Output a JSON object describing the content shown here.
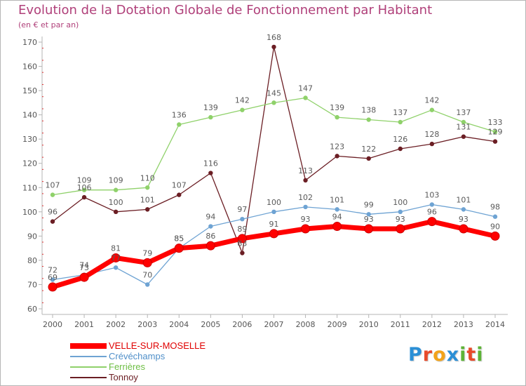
{
  "title": "Evolution de la Dotation Globale de Fonctionnement par Habitant",
  "subtitle": "(en € et par an)",
  "logo": {
    "text": "Proxiti",
    "letters": [
      "P",
      "r",
      "o",
      "x",
      "i",
      "t",
      "i"
    ],
    "colors": [
      "#2b8fd6",
      "#e84a2a",
      "#f2a31a",
      "#2b8fd6",
      "#5db336",
      "#e84a2a",
      "#5db336"
    ]
  },
  "colors": {
    "title": "#b0407a",
    "axis": "#b5b5b5",
    "tick_label": "#555555",
    "data_label": "#5a5a5a"
  },
  "chart_data": {
    "type": "line",
    "title": "Evolution de la Dotation Globale de Fonctionnement par Habitant",
    "subtitle": "(en € et par an)",
    "x": [
      2000,
      2001,
      2002,
      2003,
      2004,
      2005,
      2006,
      2007,
      2008,
      2009,
      2010,
      2011,
      2012,
      2013,
      2014
    ],
    "ylim": [
      60,
      170
    ],
    "yticks": [
      60,
      70,
      80,
      90,
      100,
      110,
      120,
      130,
      140,
      150,
      160,
      170
    ],
    "grid": false,
    "legend_position": "bottom-left",
    "series": [
      {
        "name": "Tonnoy",
        "color": "#6b1e24",
        "values": [
          96,
          106,
          100,
          101,
          107,
          116,
          83,
          168,
          113,
          123,
          122,
          126,
          128,
          131,
          129
        ]
      },
      {
        "name": "Ferrières",
        "color": "#8fd16a",
        "values": [
          107,
          109,
          109,
          110,
          136,
          139,
          142,
          145,
          147,
          139,
          138,
          137,
          142,
          137,
          133
        ]
      },
      {
        "name": "Crévéchamps",
        "color": "#6ea3d3",
        "values": [
          72,
          74,
          77,
          70,
          85,
          94,
          97,
          100,
          102,
          101,
          99,
          100,
          103,
          101,
          98
        ]
      },
      {
        "name": "VELLE-SUR-MOSELLE",
        "color": "#ff0000",
        "values": [
          69,
          73,
          81,
          79,
          85,
          86,
          89,
          91,
          93,
          94,
          93,
          93,
          96,
          93,
          90
        ]
      }
    ],
    "legend_order": [
      "VELLE-SUR-MOSELLE",
      "Crévéchamps",
      "Ferrières",
      "Tonnoy"
    ]
  }
}
